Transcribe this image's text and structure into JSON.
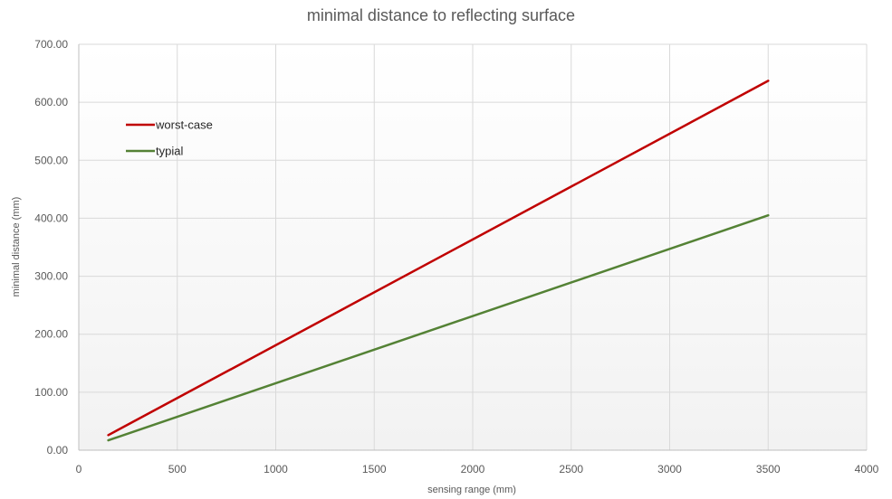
{
  "chart_data": {
    "type": "line",
    "title": "minimal distance to reflecting surface",
    "xlabel": "sensing range (mm)",
    "ylabel": "minimal distance  (mm)",
    "xlim": [
      0,
      4000
    ],
    "ylim": [
      0,
      700
    ],
    "xticks": [
      "0",
      "500",
      "1000",
      "1500",
      "2000",
      "2500",
      "3000",
      "3500",
      "4000"
    ],
    "yticks": [
      "0.00",
      "100.00",
      "200.00",
      "300.00",
      "400.00",
      "500.00",
      "600.00",
      "700.00"
    ],
    "grid": true,
    "legend_position": "top-left",
    "series": [
      {
        "name": "worst-case",
        "color": "#c00000",
        "x": [
          150,
          3500
        ],
        "y": [
          26,
          637
        ]
      },
      {
        "name": "typial",
        "color": "#548235",
        "x": [
          150,
          3500
        ],
        "y": [
          17,
          405
        ]
      }
    ]
  }
}
